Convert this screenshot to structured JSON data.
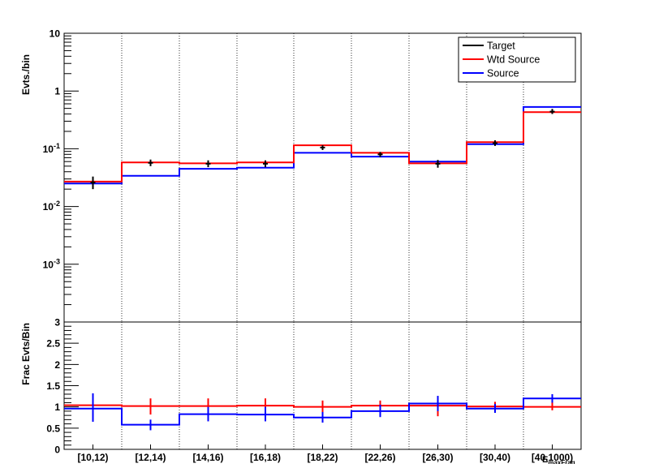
{
  "chart_data": [
    {
      "type": "step-histogram",
      "ylabel": "Evts./bin",
      "yscale": "log",
      "ylim": [
        0.0001,
        10
      ],
      "y_tick_labels": [
        {
          "v": 10,
          "base": "10",
          "exp": ""
        },
        {
          "v": 1,
          "base": "1",
          "exp": ""
        },
        {
          "v": 0.1,
          "base": "10",
          "exp": "-1"
        },
        {
          "v": 0.01,
          "base": "10",
          "exp": "-2"
        },
        {
          "v": 0.001,
          "base": "10",
          "exp": "-3"
        }
      ],
      "categories": [
        "[10,12)",
        "[12,14)",
        "[14,16)",
        "[16,18)",
        "[18,22)",
        "[22,26)",
        "[26,30)",
        "[30,40)",
        "[40,1000)"
      ],
      "legend_position": "top-right",
      "legend": [
        "Target",
        "Wtd Source",
        "Source"
      ],
      "series": [
        {
          "name": "Target",
          "color": "#000000",
          "markers": "error-bars",
          "values": [
            0.026,
            0.057,
            0.055,
            0.055,
            0.105,
            0.08,
            0.055,
            0.125,
            0.44
          ],
          "err_low": [
            0.02,
            0.05,
            0.048,
            0.048,
            0.095,
            0.072,
            0.047,
            0.112,
            0.4
          ],
          "err_high": [
            0.033,
            0.065,
            0.063,
            0.063,
            0.115,
            0.088,
            0.064,
            0.14,
            0.49
          ]
        },
        {
          "name": "Wtd Source",
          "color": "#ff0000",
          "values": [
            0.027,
            0.058,
            0.056,
            0.058,
            0.115,
            0.085,
            0.056,
            0.13,
            0.43
          ]
        },
        {
          "name": "Source",
          "color": "#0000ff",
          "values": [
            0.025,
            0.034,
            0.045,
            0.047,
            0.085,
            0.073,
            0.06,
            0.12,
            0.53
          ]
        }
      ]
    },
    {
      "type": "step-histogram",
      "ylabel": "Frac Evts/Bin",
      "xlabel": "E_maxFrag",
      "xlabel_main": "E",
      "xlabel_sub": "maxFrag",
      "ylim": [
        0,
        3
      ],
      "y_tick_labels": [
        "0",
        "0.5",
        "1",
        "1.5",
        "2",
        "2.5",
        "3"
      ],
      "categories": [
        "[10,12)",
        "[12,14)",
        "[14,16)",
        "[16,18)",
        "[18,22)",
        "[22,26)",
        "[26,30)",
        "[30,40)",
        "[40,1000)"
      ],
      "series": [
        {
          "name": "Wtd Source",
          "color": "#ff0000",
          "values": [
            1.04,
            1.02,
            1.02,
            1.03,
            1.0,
            1.03,
            1.03,
            1.01,
            1.0
          ],
          "err_low": [
            0.72,
            0.82,
            0.82,
            0.82,
            0.85,
            0.88,
            0.78,
            0.88,
            0.92
          ],
          "err_high": [
            1.28,
            1.2,
            1.2,
            1.2,
            1.15,
            1.15,
            1.22,
            1.12,
            1.12
          ]
        },
        {
          "name": "Source",
          "color": "#0000ff",
          "values": [
            0.96,
            0.58,
            0.83,
            0.82,
            0.75,
            0.9,
            1.08,
            0.96,
            1.2
          ],
          "err_low": [
            0.65,
            0.45,
            0.66,
            0.66,
            0.63,
            0.76,
            0.9,
            0.86,
            1.1
          ],
          "err_high": [
            1.32,
            0.7,
            1.0,
            1.0,
            0.88,
            1.05,
            1.26,
            1.07,
            1.3
          ]
        }
      ]
    }
  ]
}
